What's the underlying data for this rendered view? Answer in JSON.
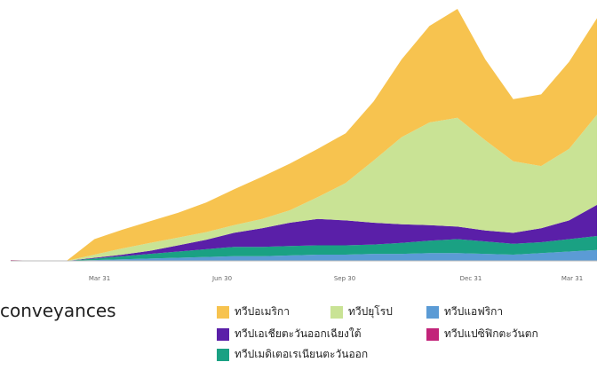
{
  "caption": "conveyances",
  "chart_data": {
    "type": "area",
    "stacked": true,
    "x_ticks": [
      "Mar 31",
      "Jun 30",
      "Sep 30",
      "Dec 31",
      "Mar 31"
    ],
    "title": "",
    "xlabel": "",
    "ylabel": "",
    "grid": false,
    "legend_position": "bottom",
    "series": [
      {
        "name": "ทวีปแอฟริกา",
        "color": "#5b9bd5",
        "values": [
          0,
          0,
          0,
          0.5,
          1,
          1.5,
          2,
          2.5,
          3,
          3,
          3.5,
          4,
          4,
          4.5,
          4.5,
          5,
          5,
          4.5,
          4,
          5,
          6,
          7
        ]
      },
      {
        "name": "ทวีปแปซิฟิกตะวันตก",
        "color": "#c2247a",
        "values": [
          0.5,
          0,
          0,
          0,
          0,
          0,
          0,
          0,
          0,
          0,
          0,
          0,
          0,
          0,
          0,
          0,
          0,
          0,
          0,
          0,
          0,
          0
        ]
      },
      {
        "name": "ทวีปเมดิเตอเรเนียนตะวันออก",
        "color": "#1aa183",
        "values": [
          0,
          0,
          0,
          1,
          2,
          3,
          4,
          5,
          6,
          6,
          6,
          6,
          6,
          6,
          7,
          8,
          9,
          8,
          7,
          7,
          8,
          9
        ]
      },
      {
        "name": "ทวีปเอเชียตะวันออกเฉียงใต้",
        "color": "#5a1fa8",
        "values": [
          0,
          0,
          0,
          0.5,
          1,
          2,
          4,
          6,
          9,
          12,
          15,
          17,
          16,
          14,
          12,
          10,
          8,
          7,
          7,
          9,
          12,
          20
        ]
      },
      {
        "name": "ทวีปยุโรป",
        "color": "#c9e395",
        "values": [
          0,
          0,
          0,
          2,
          4,
          5,
          5,
          5,
          5,
          6,
          8,
          14,
          24,
          40,
          56,
          66,
          70,
          58,
          46,
          40,
          46,
          58
        ]
      },
      {
        "name": "ทวีปอเมริกา",
        "color": "#f7c34f",
        "values": [
          0,
          0,
          0,
          10,
          12,
          14,
          16,
          19,
          23,
          27,
          30,
          31,
          32,
          38,
          50,
          62,
          70,
          52,
          40,
          46,
          56,
          62
        ]
      }
    ]
  },
  "legend": [
    {
      "label": "ทวีปอเมริกา",
      "color": "#f7c34f"
    },
    {
      "label": "ทวีปยุโรป",
      "color": "#c9e395"
    },
    {
      "label": "ทวีปแอฟริกา",
      "color": "#5b9bd5"
    },
    {
      "label": "ทวีปเอเชียตะวันออกเฉียงใต้",
      "color": "#5a1fa8"
    },
    {
      "label": "ทวีปแปซิฟิกตะวันตก",
      "color": "#c2247a"
    },
    {
      "label": "ทวีปเมดิเตอเรเนียนตะวันออก",
      "color": "#1aa183"
    }
  ]
}
